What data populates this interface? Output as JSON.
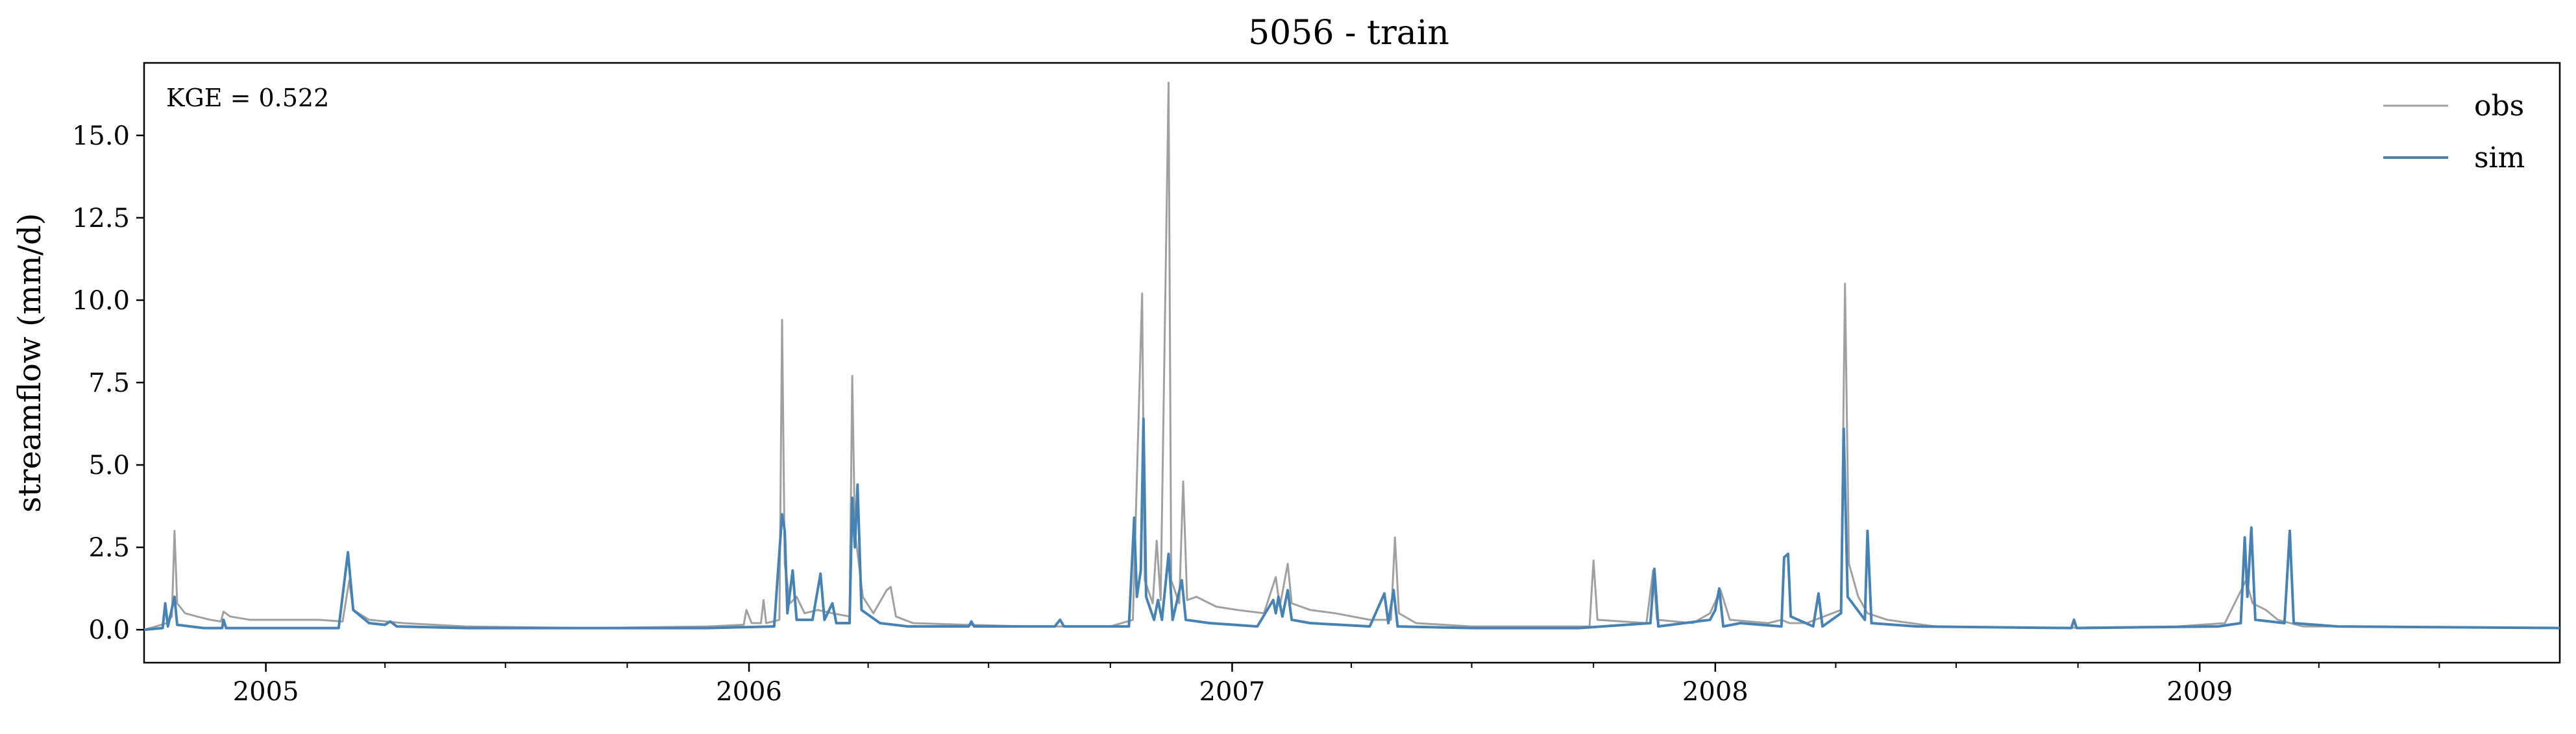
{
  "chart_data": {
    "type": "line",
    "title": "5056 - train",
    "xlabel": "",
    "ylabel": "streamflow (mm/d)",
    "annotation": "KGE = 0.522",
    "x_range": [
      "2004-10-01",
      "2009-09-30"
    ],
    "ylim": [
      -1.0,
      17.2
    ],
    "y_ticks": [
      0.0,
      2.5,
      5.0,
      7.5,
      10.0,
      12.5,
      15.0
    ],
    "y_tick_labels": [
      "0.0",
      "2.5",
      "5.0",
      "7.5",
      "10.0",
      "12.5",
      "15.0"
    ],
    "x_major_ticks": [
      "2005-01-01",
      "2006-01-01",
      "2007-01-01",
      "2008-01-01",
      "2009-01-01"
    ],
    "x_tick_labels": [
      "2005",
      "2006",
      "2007",
      "2008",
      "2009"
    ],
    "grid": false,
    "legend_position": "top-right",
    "series": [
      {
        "name": "obs",
        "color": "#a0a0a0",
        "points": [
          [
            "2004-10-01",
            0.0
          ],
          [
            "2004-10-10",
            0.1
          ],
          [
            "2004-10-18",
            0.2
          ],
          [
            "2004-10-22",
            0.4
          ],
          [
            "2004-10-24",
            3.0
          ],
          [
            "2004-10-26",
            0.8
          ],
          [
            "2004-11-01",
            0.5
          ],
          [
            "2004-11-10",
            0.4
          ],
          [
            "2004-11-20",
            0.3
          ],
          [
            "2004-11-28",
            0.25
          ],
          [
            "2004-11-30",
            0.55
          ],
          [
            "2004-12-05",
            0.4
          ],
          [
            "2004-12-20",
            0.3
          ],
          [
            "2005-01-15",
            0.3
          ],
          [
            "2005-02-10",
            0.3
          ],
          [
            "2005-02-28",
            0.25
          ],
          [
            "2005-03-05",
            1.5
          ],
          [
            "2005-03-08",
            0.6
          ],
          [
            "2005-03-20",
            0.3
          ],
          [
            "2005-04-15",
            0.2
          ],
          [
            "2005-06-01",
            0.1
          ],
          [
            "2005-09-01",
            0.05
          ],
          [
            "2005-12-01",
            0.1
          ],
          [
            "2005-12-28",
            0.15
          ],
          [
            "2005-12-30",
            0.6
          ],
          [
            "2006-01-03",
            0.2
          ],
          [
            "2006-01-10",
            0.2
          ],
          [
            "2006-01-12",
            0.9
          ],
          [
            "2006-01-14",
            0.2
          ],
          [
            "2006-01-24",
            0.3
          ],
          [
            "2006-01-26",
            9.4
          ],
          [
            "2006-01-28",
            2.0
          ],
          [
            "2006-02-01",
            0.8
          ],
          [
            "2006-02-06",
            1.0
          ],
          [
            "2006-02-12",
            0.5
          ],
          [
            "2006-02-22",
            0.6
          ],
          [
            "2006-03-05",
            0.5
          ],
          [
            "2006-03-18",
            0.4
          ],
          [
            "2006-03-20",
            7.7
          ],
          [
            "2006-03-22",
            3.0
          ],
          [
            "2006-03-28",
            1.0
          ],
          [
            "2006-04-05",
            0.5
          ],
          [
            "2006-04-15",
            1.2
          ],
          [
            "2006-04-18",
            1.3
          ],
          [
            "2006-04-22",
            0.4
          ],
          [
            "2006-05-05",
            0.2
          ],
          [
            "2006-06-15",
            0.15
          ],
          [
            "2006-08-01",
            0.1
          ],
          [
            "2006-10-01",
            0.1
          ],
          [
            "2006-10-18",
            0.3
          ],
          [
            "2006-10-25",
            10.2
          ],
          [
            "2006-10-27",
            1.5
          ],
          [
            "2006-11-02",
            0.8
          ],
          [
            "2006-11-05",
            2.7
          ],
          [
            "2006-11-08",
            0.9
          ],
          [
            "2006-11-14",
            16.6
          ],
          [
            "2006-11-16",
            1.5
          ],
          [
            "2006-11-22",
            0.8
          ],
          [
            "2006-11-25",
            4.5
          ],
          [
            "2006-11-28",
            0.9
          ],
          [
            "2006-12-05",
            1.0
          ],
          [
            "2006-12-20",
            0.7
          ],
          [
            "2007-01-05",
            0.6
          ],
          [
            "2007-01-25",
            0.5
          ],
          [
            "2007-02-03",
            1.6
          ],
          [
            "2007-02-06",
            0.7
          ],
          [
            "2007-02-12",
            2.0
          ],
          [
            "2007-02-15",
            0.8
          ],
          [
            "2007-03-01",
            0.6
          ],
          [
            "2007-03-20",
            0.5
          ],
          [
            "2007-04-15",
            0.3
          ],
          [
            "2007-05-01",
            0.3
          ],
          [
            "2007-05-04",
            2.8
          ],
          [
            "2007-05-07",
            0.5
          ],
          [
            "2007-05-20",
            0.2
          ],
          [
            "2007-07-01",
            0.1
          ],
          [
            "2007-09-15",
            0.1
          ],
          [
            "2007-09-28",
            0.1
          ],
          [
            "2007-10-01",
            2.1
          ],
          [
            "2007-10-04",
            0.3
          ],
          [
            "2007-11-10",
            0.2
          ],
          [
            "2007-11-15",
            1.8
          ],
          [
            "2007-11-18",
            0.3
          ],
          [
            "2007-12-15",
            0.2
          ],
          [
            "2007-12-28",
            0.5
          ],
          [
            "2008-01-05",
            1.2
          ],
          [
            "2008-01-12",
            0.3
          ],
          [
            "2008-02-10",
            0.2
          ],
          [
            "2008-02-20",
            0.3
          ],
          [
            "2008-02-26",
            0.2
          ],
          [
            "2008-03-10",
            0.2
          ],
          [
            "2008-04-05",
            0.6
          ],
          [
            "2008-04-08",
            10.5
          ],
          [
            "2008-04-11",
            2.0
          ],
          [
            "2008-04-18",
            1.0
          ],
          [
            "2008-04-25",
            0.5
          ],
          [
            "2008-05-10",
            0.3
          ],
          [
            "2008-06-15",
            0.1
          ],
          [
            "2008-09-01",
            0.05
          ],
          [
            "2008-12-15",
            0.1
          ],
          [
            "2009-01-20",
            0.2
          ],
          [
            "2009-02-05",
            1.5
          ],
          [
            "2009-02-10",
            0.8
          ],
          [
            "2009-02-20",
            0.6
          ],
          [
            "2009-03-01",
            0.3
          ],
          [
            "2009-03-20",
            0.1
          ],
          [
            "2009-05-01",
            0.1
          ],
          [
            "2009-09-30",
            0.05
          ]
        ]
      },
      {
        "name": "sim",
        "color": "#4682b4",
        "points": [
          [
            "2004-10-01",
            0.0
          ],
          [
            "2004-10-15",
            0.05
          ],
          [
            "2004-10-17",
            0.8
          ],
          [
            "2004-10-19",
            0.1
          ],
          [
            "2004-10-24",
            1.0
          ],
          [
            "2004-10-26",
            0.15
          ],
          [
            "2004-11-15",
            0.05
          ],
          [
            "2004-11-29",
            0.05
          ],
          [
            "2004-11-30",
            0.3
          ],
          [
            "2004-12-02",
            0.05
          ],
          [
            "2005-02-25",
            0.05
          ],
          [
            "2005-03-04",
            2.35
          ],
          [
            "2005-03-08",
            0.6
          ],
          [
            "2005-03-20",
            0.2
          ],
          [
            "2005-04-01",
            0.15
          ],
          [
            "2005-04-05",
            0.25
          ],
          [
            "2005-04-10",
            0.1
          ],
          [
            "2005-06-01",
            0.05
          ],
          [
            "2005-12-01",
            0.05
          ],
          [
            "2006-01-20",
            0.1
          ],
          [
            "2006-01-26",
            3.5
          ],
          [
            "2006-01-28",
            3.0
          ],
          [
            "2006-01-30",
            0.5
          ],
          [
            "2006-02-03",
            1.8
          ],
          [
            "2006-02-06",
            0.3
          ],
          [
            "2006-02-18",
            0.3
          ],
          [
            "2006-02-24",
            1.7
          ],
          [
            "2006-02-27",
            0.3
          ],
          [
            "2006-03-05",
            0.8
          ],
          [
            "2006-03-08",
            0.2
          ],
          [
            "2006-03-18",
            0.2
          ],
          [
            "2006-03-20",
            4.0
          ],
          [
            "2006-03-22",
            2.5
          ],
          [
            "2006-03-24",
            4.4
          ],
          [
            "2006-03-27",
            0.6
          ],
          [
            "2006-04-10",
            0.2
          ],
          [
            "2006-05-01",
            0.1
          ],
          [
            "2006-06-16",
            0.1
          ],
          [
            "2006-06-18",
            0.25
          ],
          [
            "2006-06-20",
            0.1
          ],
          [
            "2006-08-20",
            0.1
          ],
          [
            "2006-08-24",
            0.3
          ],
          [
            "2006-08-27",
            0.1
          ],
          [
            "2006-10-15",
            0.1
          ],
          [
            "2006-10-19",
            3.4
          ],
          [
            "2006-10-21",
            1.0
          ],
          [
            "2006-10-24",
            1.8
          ],
          [
            "2006-10-26",
            6.4
          ],
          [
            "2006-10-28",
            1.0
          ],
          [
            "2006-11-03",
            0.3
          ],
          [
            "2006-11-06",
            0.9
          ],
          [
            "2006-11-09",
            0.3
          ],
          [
            "2006-11-14",
            2.3
          ],
          [
            "2006-11-17",
            0.3
          ],
          [
            "2006-11-24",
            1.5
          ],
          [
            "2006-11-27",
            0.3
          ],
          [
            "2006-12-15",
            0.2
          ],
          [
            "2007-01-20",
            0.1
          ],
          [
            "2007-02-01",
            0.9
          ],
          [
            "2007-02-03",
            0.5
          ],
          [
            "2007-02-05",
            1.0
          ],
          [
            "2007-02-08",
            0.4
          ],
          [
            "2007-02-12",
            1.2
          ],
          [
            "2007-02-15",
            0.3
          ],
          [
            "2007-03-01",
            0.2
          ],
          [
            "2007-04-15",
            0.1
          ],
          [
            "2007-04-26",
            1.1
          ],
          [
            "2007-04-29",
            0.2
          ],
          [
            "2007-05-03",
            1.2
          ],
          [
            "2007-05-06",
            0.1
          ],
          [
            "2007-07-01",
            0.05
          ],
          [
            "2007-09-20",
            0.05
          ],
          [
            "2007-11-13",
            0.2
          ],
          [
            "2007-11-16",
            1.85
          ],
          [
            "2007-11-19",
            0.1
          ],
          [
            "2007-12-28",
            0.3
          ],
          [
            "2008-01-01",
            0.6
          ],
          [
            "2008-01-04",
            1.25
          ],
          [
            "2008-01-07",
            0.1
          ],
          [
            "2008-01-20",
            0.2
          ],
          [
            "2008-02-20",
            0.1
          ],
          [
            "2008-02-22",
            2.2
          ],
          [
            "2008-02-25",
            2.3
          ],
          [
            "2008-02-27",
            0.4
          ],
          [
            "2008-03-15",
            0.1
          ],
          [
            "2008-03-19",
            1.1
          ],
          [
            "2008-03-22",
            0.1
          ],
          [
            "2008-04-05",
            0.5
          ],
          [
            "2008-04-07",
            6.1
          ],
          [
            "2008-04-10",
            1.0
          ],
          [
            "2008-04-23",
            0.3
          ],
          [
            "2008-04-25",
            3.0
          ],
          [
            "2008-04-28",
            0.2
          ],
          [
            "2008-06-01",
            0.1
          ],
          [
            "2008-09-26",
            0.05
          ],
          [
            "2008-09-28",
            0.3
          ],
          [
            "2008-09-30",
            0.05
          ],
          [
            "2009-01-15",
            0.1
          ],
          [
            "2009-02-01",
            0.2
          ],
          [
            "2009-02-04",
            2.8
          ],
          [
            "2009-02-06",
            1.0
          ],
          [
            "2009-02-09",
            3.1
          ],
          [
            "2009-02-12",
            0.3
          ],
          [
            "2009-03-06",
            0.2
          ],
          [
            "2009-03-10",
            3.0
          ],
          [
            "2009-03-13",
            0.2
          ],
          [
            "2009-04-15",
            0.1
          ],
          [
            "2009-09-30",
            0.05
          ]
        ]
      }
    ]
  }
}
